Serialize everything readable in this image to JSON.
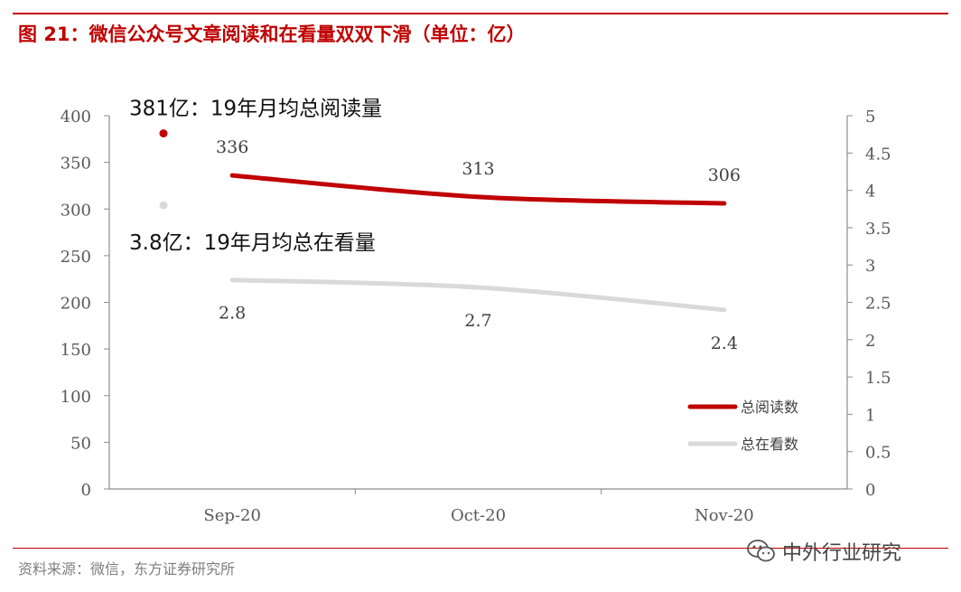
{
  "header": {
    "title": "图 21：微信公众号文章阅读和在看量双双下滑（单位：亿）"
  },
  "footer": {
    "source": "资料来源：微信，东方证券研究所",
    "watermark": "中外行业研究",
    "watermark_icon": "wechat-icon"
  },
  "colors": {
    "accent": "#c00000",
    "series1": "#c00000",
    "series2": "#d9d9d9"
  },
  "chart_data": {
    "type": "line",
    "title": "图 21：微信公众号文章阅读和在看量双双下滑（单位：亿）",
    "categories": [
      "Sep-20",
      "Oct-20",
      "Nov-20"
    ],
    "y_left": {
      "min": 0,
      "max": 400,
      "ticks": [
        "0",
        "50",
        "100",
        "150",
        "200",
        "250",
        "300",
        "350",
        "400"
      ]
    },
    "y_right": {
      "min": 0,
      "max": 5,
      "ticks": [
        "0",
        "0.5",
        "1",
        "1.5",
        "2",
        "2.5",
        "3",
        "3.5",
        "4",
        "4.5",
        "5"
      ]
    },
    "series": [
      {
        "name": "总阅读数",
        "axis": "left",
        "values": [
          336,
          313,
          306
        ],
        "labels": [
          "336",
          "313",
          "306"
        ],
        "color": "#c00000"
      },
      {
        "name": "总在看数",
        "axis": "right",
        "values": [
          2.8,
          2.7,
          2.4
        ],
        "labels": [
          "2.8",
          "2.7",
          "2.4"
        ],
        "color": "#d9d9d9"
      }
    ],
    "reference_points": [
      {
        "text": "381亿：19年月均总阅读量",
        "value": 381,
        "axis": "left",
        "color": "#c00000"
      },
      {
        "text": "3.8亿：19年月均总在看量",
        "value": 3.8,
        "axis": "right",
        "color": "#d9d9d9"
      }
    ],
    "legend_position": "bottom-right",
    "grid": false
  }
}
